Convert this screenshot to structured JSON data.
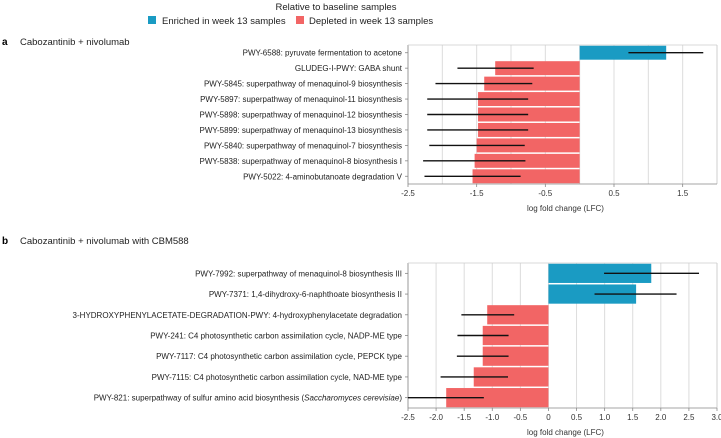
{
  "legend": {
    "title": "Relative to baseline samples",
    "items": [
      {
        "label": "Enriched in week 13 samples",
        "color": "#1a9bc3"
      },
      {
        "label": "Depleted in week 13 samples",
        "color": "#f26565"
      }
    ]
  },
  "chart_data": [
    {
      "type": "bar",
      "orientation": "horizontal",
      "panel": "a",
      "title": "Cabozantinib + nivolumab",
      "xlabel": "log fold change (LFC)",
      "xlim": [
        -2.5,
        2.0
      ],
      "xticks": [
        "-2.5",
        "-1.5",
        "-0.5",
        "0.5",
        "1.5"
      ],
      "xtick_values": [
        -2.5,
        -1.5,
        -0.5,
        0.5,
        1.5
      ],
      "grid_step": 0.5,
      "grid": true,
      "rows": [
        {
          "label": "PWY-6588: pyruvate fermentation to acetone",
          "value": 1.26,
          "ci": [
            0.71,
            1.8
          ]
        },
        {
          "label": "GLUDEG-I-PWY: GABA shunt",
          "value": -1.23,
          "ci": [
            -1.78,
            -0.67
          ]
        },
        {
          "label": "PWY-5845: superpathway of menaquinol-9 biosynthesis",
          "value": -1.39,
          "ci": [
            -2.1,
            -0.69
          ]
        },
        {
          "label": "PWY-5897: superpathway of menaquinol-11 biosynthesis",
          "value": -1.48,
          "ci": [
            -2.22,
            -0.75
          ]
        },
        {
          "label": "PWY-5898: superpathway of menaquinol-12 biosynthesis",
          "value": -1.48,
          "ci": [
            -2.22,
            -0.75
          ]
        },
        {
          "label": "PWY-5899: superpathway of menaquinol-13 biosynthesis",
          "value": -1.48,
          "ci": [
            -2.22,
            -0.75
          ]
        },
        {
          "label": "PWY-5840: superpathway of menaquinol-7 biosynthesis",
          "value": -1.5,
          "ci": [
            -2.19,
            -0.8
          ]
        },
        {
          "label": "PWY-5838: superpathway of menaquinol-8 biosynthesis I",
          "value": -1.53,
          "ci": [
            -2.28,
            -0.79
          ]
        },
        {
          "label": "PWY-5022: 4-aminobutanoate degradation V",
          "value": -1.56,
          "ci": [
            -2.26,
            -0.86
          ]
        }
      ]
    },
    {
      "type": "bar",
      "orientation": "horizontal",
      "panel": "b",
      "title": "Cabozantinib + nivolumab with CBM588",
      "xlabel": "log fold change (LFC)",
      "xlim": [
        -2.5,
        3.0
      ],
      "xticks": [
        "-2.5",
        "-2.0",
        "-1.5",
        "-1.0",
        "-0.5",
        "0",
        "0.5",
        "1.0",
        "1.5",
        "2.0",
        "2.5",
        "3.0"
      ],
      "xtick_values": [
        -2.5,
        -2.0,
        -1.5,
        -1.0,
        -0.5,
        0,
        0.5,
        1.0,
        1.5,
        2.0,
        2.5,
        3.0
      ],
      "grid_step": 0.5,
      "grid": true,
      "rows": [
        {
          "label": "PWY-7992: superpathway of menaquinol-8 biosynthesis III",
          "value": 1.83,
          "ci": [
            0.99,
            2.68
          ]
        },
        {
          "label": "PWY-7371: 1,4-dihydroxy-6-naphthoate biosynthesis II",
          "value": 1.56,
          "ci": [
            0.82,
            2.28
          ]
        },
        {
          "label": "3-HYDROXYPHENYLACETATE-DEGRADATION-PWY: 4-hydroxyphenylacetate degradation",
          "value": -1.09,
          "ci": [
            -1.55,
            -0.61
          ]
        },
        {
          "label": "PWY-241: C4 photosynthetic carbon assimilation cycle, NADP-ME type",
          "value": -1.17,
          "ci": [
            -1.62,
            -0.71
          ]
        },
        {
          "label": "PWY-7117: C4 photosynthetic carbon assimilation cycle, PEPCK type",
          "value": -1.17,
          "ci": [
            -1.63,
            -0.71
          ]
        },
        {
          "label": "PWY-7115: C4 photosynthetic carbon assimilation cycle, NAD-ME type",
          "value": -1.33,
          "ci": [
            -1.92,
            -0.72
          ]
        },
        {
          "label": [
            "PWY-821: superpathway of sulfur amino acid biosynthesis (",
            "Saccharomyces cerevisiae",
            ")"
          ],
          "value": -1.82,
          "ci": [
            -2.5,
            -1.15
          ]
        }
      ]
    }
  ]
}
